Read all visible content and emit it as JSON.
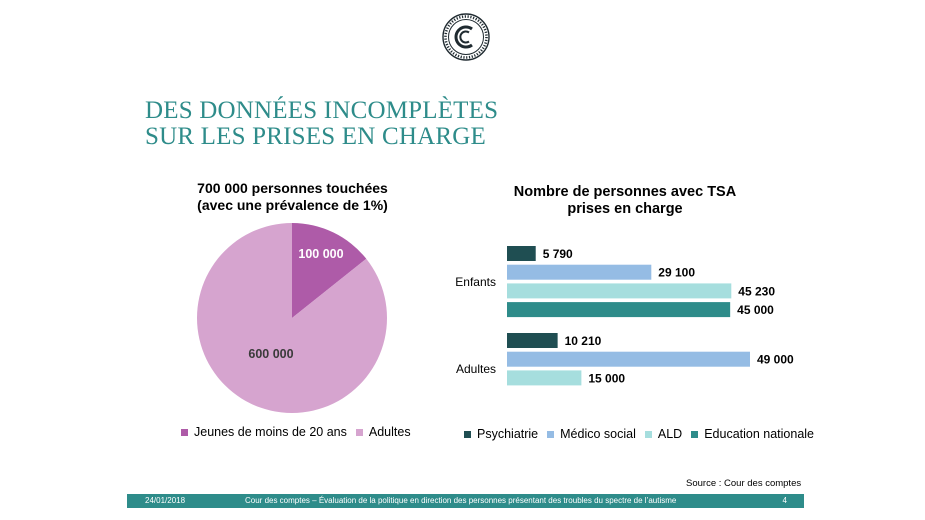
{
  "slide": {
    "title_lines": [
      "DES DONNÉES INCOMPLÈTES",
      "SUR LES PRISES EN CHARGE"
    ],
    "source": "Source : Cour des comptes",
    "footer": {
      "date": "24/01/2018",
      "text": "Cour des comptes – Évaluation de la politique en direction des personnes présentant des troubles du spectre de l’autisme",
      "page": "4"
    },
    "colors": {
      "title": "#2e8c8a",
      "footer_bg": "#2e8c8a",
      "logo": "#1f2a30"
    },
    "logo_icon": "cour-des-comptes-seal-icon"
  },
  "chart_data": [
    {
      "type": "pie",
      "title_lines": [
        "700 000 personnes touchées",
        "(avec une prévalence de 1%)"
      ],
      "labels": [
        "Jeunes de moins de 20 ans",
        "Adultes"
      ],
      "values": [
        100000,
        600000
      ],
      "value_labels": [
        "100 000",
        "600 000"
      ],
      "colors": [
        "#ae5ba8",
        "#d6a4cf"
      ],
      "legend_position": "bottom"
    },
    {
      "type": "bar",
      "orientation": "horizontal",
      "title_lines": [
        "Nombre de personnes avec TSA",
        "prises en charge"
      ],
      "categories": [
        "Enfants",
        "Adultes"
      ],
      "series": [
        {
          "name": "Psychiatrie",
          "color": "#1f4e52",
          "values": [
            5790,
            10210
          ],
          "value_labels": [
            "5 790",
            "10 210"
          ]
        },
        {
          "name": "Médico social",
          "color": "#95bce4",
          "values": [
            29100,
            49000
          ],
          "value_labels": [
            "29 100",
            "49 000"
          ]
        },
        {
          "name": "ALD",
          "color": "#a6dede",
          "values": [
            45230,
            15000
          ],
          "value_labels": [
            "45 230",
            "15 000"
          ]
        },
        {
          "name": "Education nationale",
          "color": "#2e8c8a",
          "values": [
            45000,
            null
          ],
          "value_labels": [
            "45 000",
            ""
          ]
        }
      ],
      "xlim": [
        0,
        49000
      ],
      "legend_position": "bottom",
      "grid": false
    }
  ]
}
